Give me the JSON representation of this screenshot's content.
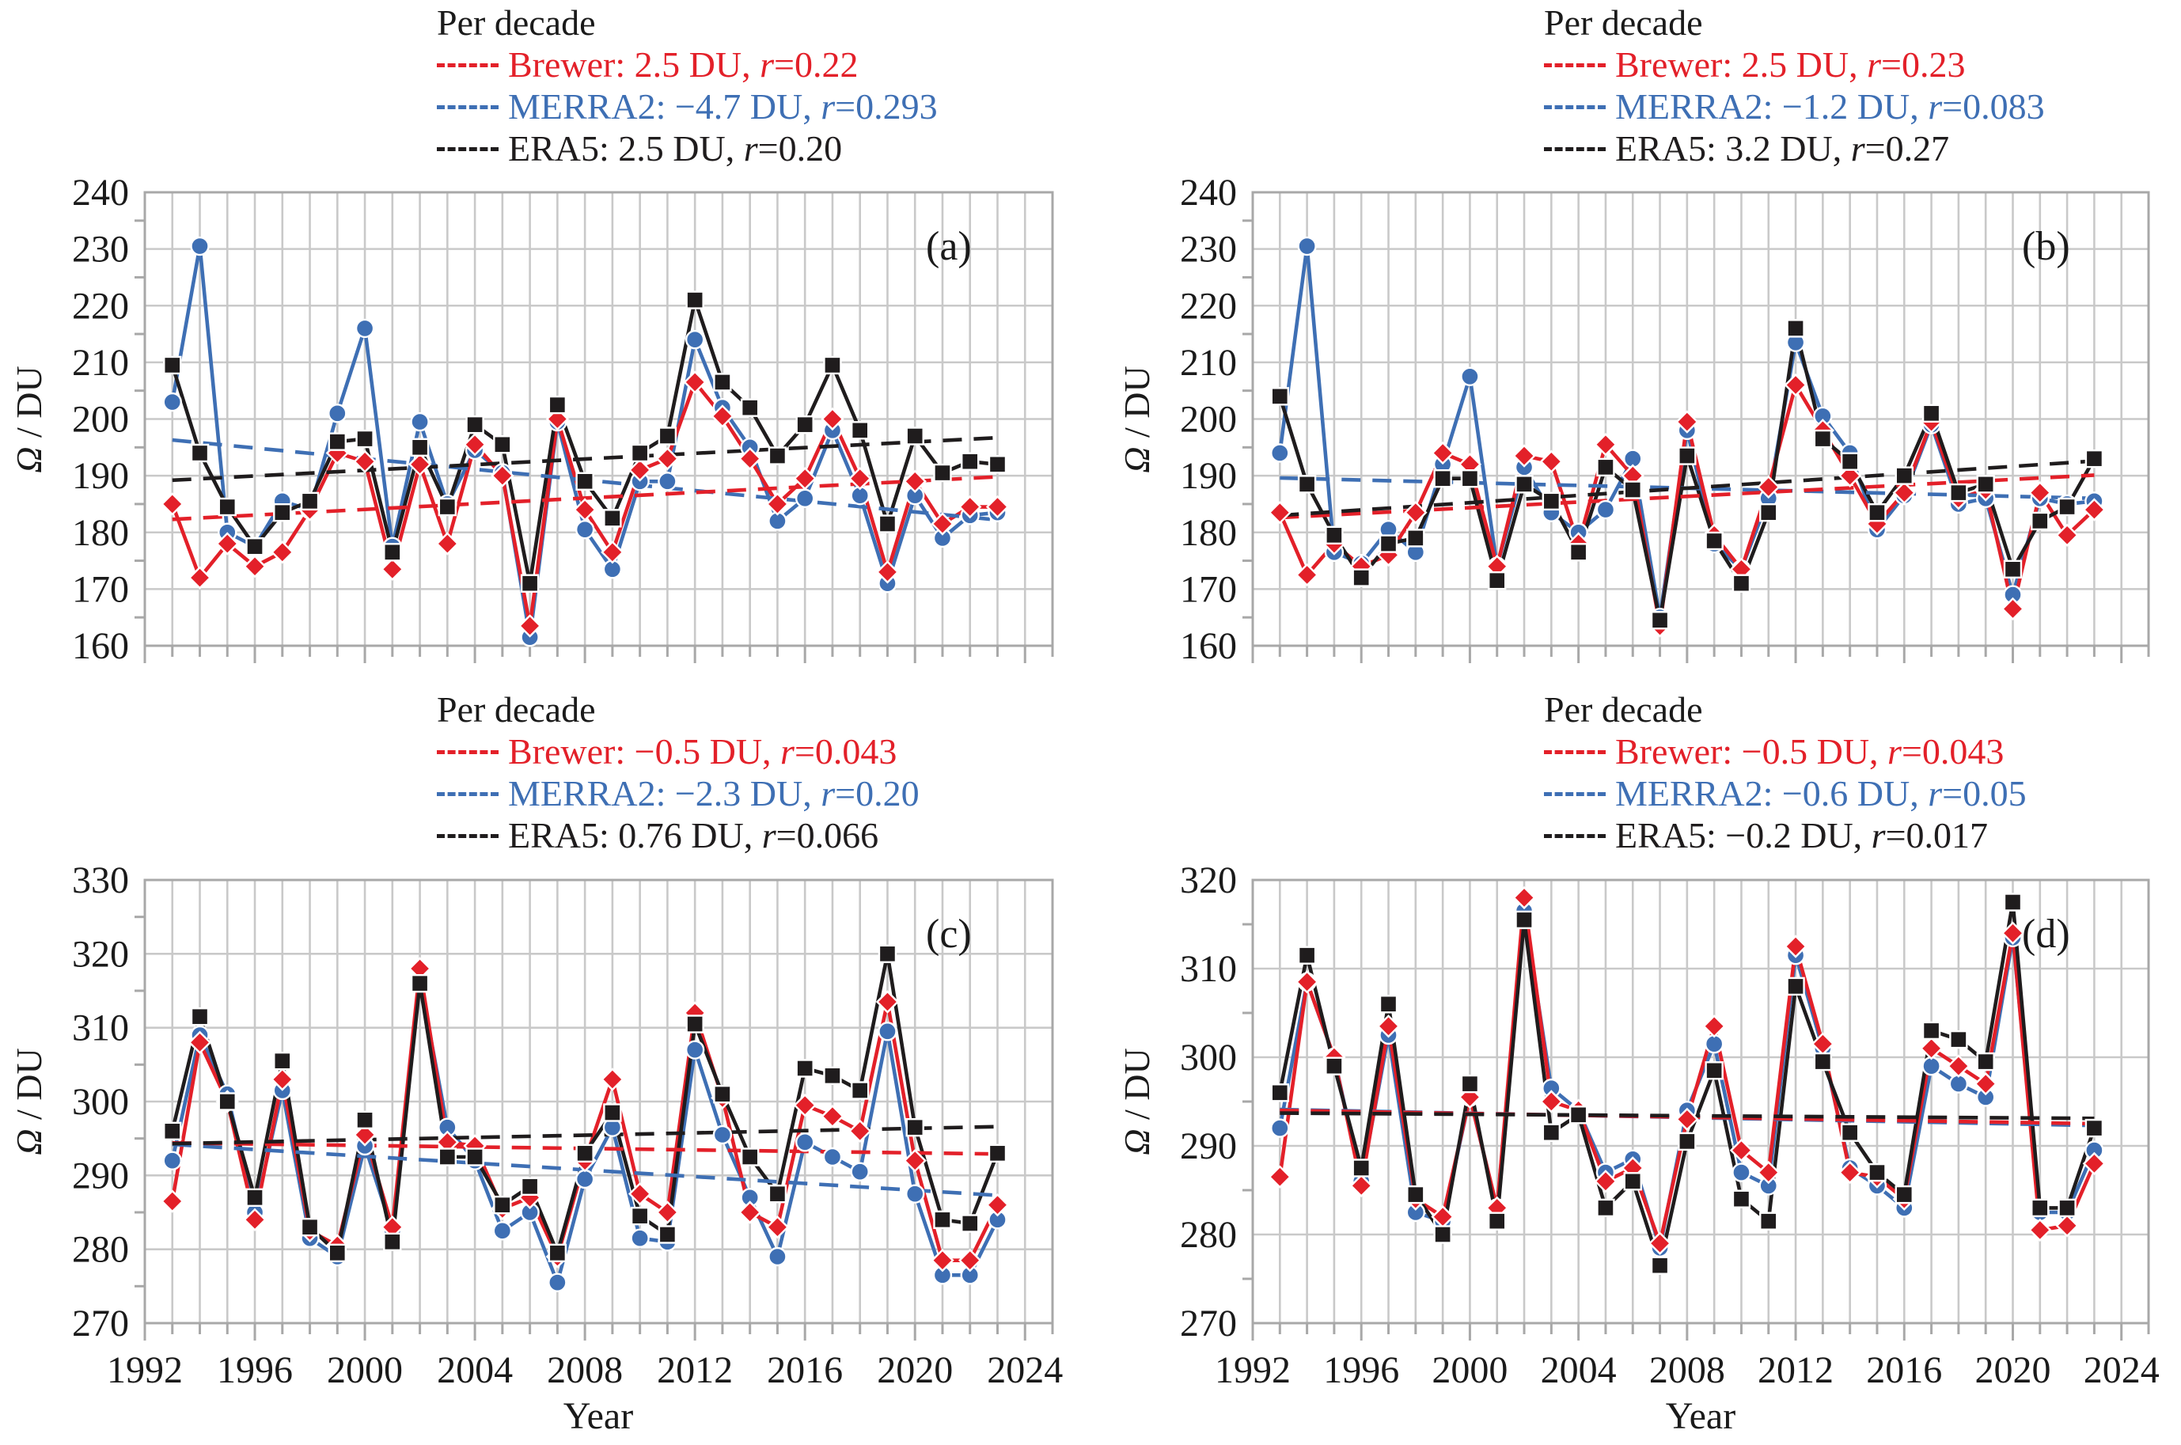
{
  "colors": {
    "brewer": "#e32029",
    "merra2": "#3e6fb4",
    "era5": "#1f1c1d",
    "grid": "#c9c9c9",
    "frame": "#a8a8a8",
    "text": "#1a1a1a",
    "marker_outline": "#ffffff"
  },
  "axis_titles": {
    "y_symbol": "Ω",
    "y_unit": " / DU",
    "x": "Year"
  },
  "x_axis": {
    "start": 1992,
    "end": 2025,
    "tick_labels": [
      "1992",
      "1996",
      "2000",
      "2004",
      "2008",
      "2012",
      "2016",
      "2020",
      "2024"
    ]
  },
  "chart_data": [
    {
      "id": "a",
      "type": "line",
      "panel_label": "(a)",
      "legend": {
        "title": "Per decade",
        "entries": [
          {
            "name": "Brewer",
            "rate": "2.5 DU",
            "r": "0.22",
            "color_key": "brewer"
          },
          {
            "name": "MERRA2",
            "rate": "−4.7 DU",
            "r": "0.293",
            "color_key": "merra2"
          },
          {
            "name": "ERA5",
            "rate": "2.5 DU",
            "r": "0.20",
            "color_key": "era5"
          }
        ]
      },
      "ylim": [
        160,
        240
      ],
      "ytick_step": 10,
      "years": [
        1993,
        1994,
        1995,
        1996,
        1997,
        1998,
        1999,
        2000,
        2001,
        2002,
        2003,
        2004,
        2005,
        2006,
        2007,
        2008,
        2009,
        2010,
        2011,
        2012,
        2013,
        2014,
        2015,
        2016,
        2017,
        2018,
        2019,
        2020,
        2021,
        2022,
        2023
      ],
      "series": [
        {
          "name": "MERRA2",
          "color_key": "merra2",
          "marker": "circle",
          "values": [
            203,
            230.5,
            180,
            177.5,
            185.5,
            184,
            201,
            216,
            177.5,
            199.5,
            185,
            194.5,
            190.5,
            161.5,
            199.5,
            180.5,
            173.5,
            189,
            189,
            214,
            202,
            195,
            182,
            186,
            198,
            186.5,
            171,
            186.5,
            179,
            183,
            183.5
          ]
        },
        {
          "name": "Brewer",
          "color_key": "brewer",
          "marker": "diamond",
          "values": [
            185,
            172,
            178,
            174,
            176.5,
            184,
            194,
            192.5,
            173.5,
            192,
            178,
            195.5,
            190,
            163.5,
            200,
            184,
            176.5,
            191,
            193,
            206.5,
            200.5,
            193,
            185,
            189.5,
            200,
            189.5,
            173,
            189,
            181.5,
            184.5,
            184.5
          ]
        },
        {
          "name": "ERA5",
          "color_key": "era5",
          "marker": "square",
          "values": [
            209.5,
            194,
            184.5,
            177.5,
            183.5,
            185.5,
            196,
            196.5,
            176.5,
            195,
            184.5,
            199,
            195.5,
            171,
            202.5,
            189,
            182.5,
            194,
            197,
            221,
            206.5,
            202,
            193.5,
            199,
            209.5,
            198,
            181.5,
            197,
            190.5,
            192.5,
            192
          ]
        }
      ],
      "trends": [
        {
          "color_key": "merra2",
          "start": 196.3,
          "end": 182.2
        },
        {
          "color_key": "brewer",
          "start": 182.3,
          "end": 189.8
        },
        {
          "color_key": "era5",
          "start": 189.2,
          "end": 196.7
        }
      ]
    },
    {
      "id": "b",
      "type": "line",
      "panel_label": "(b)",
      "legend": {
        "title": "Per decade",
        "entries": [
          {
            "name": "Brewer",
            "rate": "2.5 DU",
            "r": "0.23",
            "color_key": "brewer"
          },
          {
            "name": "MERRA2",
            "rate": "−1.2 DU",
            "r": "0.083",
            "color_key": "merra2"
          },
          {
            "name": "ERA5",
            "rate": "3.2 DU",
            "r": "0.27",
            "color_key": "era5"
          }
        ]
      },
      "ylim": [
        160,
        240
      ],
      "ytick_step": 10,
      "years": [
        1993,
        1994,
        1995,
        1996,
        1997,
        1998,
        1999,
        2000,
        2001,
        2002,
        2003,
        2004,
        2005,
        2006,
        2007,
        2008,
        2009,
        2010,
        2011,
        2012,
        2013,
        2014,
        2015,
        2016,
        2017,
        2018,
        2019,
        2020,
        2021,
        2022,
        2023
      ],
      "series": [
        {
          "name": "MERRA2",
          "color_key": "merra2",
          "marker": "circle",
          "values": [
            194,
            230.5,
            176.5,
            174.5,
            180.5,
            176.5,
            192,
            207.5,
            174,
            191.5,
            183.5,
            180,
            184,
            193,
            165,
            198,
            178,
            173.5,
            186,
            213.5,
            200.5,
            194,
            180.5,
            186.5,
            199,
            185,
            186,
            169,
            186,
            185,
            185.5
          ]
        },
        {
          "name": "Brewer",
          "color_key": "brewer",
          "marker": "diamond",
          "values": [
            183.5,
            172.5,
            178,
            174,
            176,
            183.5,
            194,
            192,
            174,
            193.5,
            192.5,
            178,
            195.5,
            190,
            163.5,
            199.5,
            179.5,
            173.5,
            188,
            206,
            198,
            190,
            181.5,
            187,
            199.5,
            186,
            187.5,
            166.5,
            187,
            179.5,
            184
          ]
        },
        {
          "name": "ERA5",
          "color_key": "era5",
          "marker": "square",
          "values": [
            204,
            188.5,
            179.5,
            172,
            178,
            179,
            189.5,
            189.5,
            171.5,
            188.5,
            185.5,
            176.5,
            191.5,
            187.5,
            164.5,
            193.5,
            178.5,
            171,
            183.5,
            216,
            196.5,
            192.5,
            183.5,
            190,
            201,
            187,
            188.5,
            173.5,
            182,
            184.5,
            193
          ]
        }
      ],
      "trends": [
        {
          "color_key": "merra2",
          "start": 189.6,
          "end": 186.0
        },
        {
          "color_key": "brewer",
          "start": 182.6,
          "end": 190.1
        },
        {
          "color_key": "era5",
          "start": 183.0,
          "end": 192.6
        }
      ]
    },
    {
      "id": "c",
      "type": "line",
      "panel_label": "(c)",
      "legend": {
        "title": "Per decade",
        "entries": [
          {
            "name": "Brewer",
            "rate": "−0.5 DU",
            "r": "0.043",
            "color_key": "brewer"
          },
          {
            "name": "MERRA2",
            "rate": "−2.3 DU",
            "r": "0.20",
            "color_key": "merra2"
          },
          {
            "name": "ERA5",
            "rate": "0.76 DU",
            "r": "0.066",
            "color_key": "era5"
          }
        ]
      },
      "ylim": [
        270,
        330
      ],
      "ytick_step": 10,
      "years": [
        1993,
        1994,
        1995,
        1996,
        1997,
        1998,
        1999,
        2000,
        2001,
        2002,
        2003,
        2004,
        2005,
        2006,
        2007,
        2008,
        2009,
        2010,
        2011,
        2012,
        2013,
        2014,
        2015,
        2016,
        2017,
        2018,
        2019,
        2020,
        2021,
        2022,
        2023
      ],
      "series": [
        {
          "name": "MERRA2",
          "color_key": "merra2",
          "marker": "circle",
          "values": [
            292,
            309,
            301,
            285,
            301.5,
            281.5,
            279,
            294,
            282.5,
            316.5,
            296.5,
            292,
            282.5,
            285,
            275.5,
            289.5,
            296.5,
            281.5,
            281,
            307,
            295.5,
            287,
            279,
            294.5,
            292.5,
            290.5,
            309.5,
            287.5,
            276.5,
            276.5,
            284
          ]
        },
        {
          "name": "Brewer",
          "color_key": "brewer",
          "marker": "diamond",
          "values": [
            286.5,
            308,
            300,
            284,
            303,
            282.5,
            280.5,
            295.5,
            283,
            318,
            294.5,
            294,
            285.5,
            287,
            279,
            292,
            303,
            287.5,
            285,
            312,
            300.5,
            285,
            283,
            299.5,
            298,
            296,
            313.5,
            292,
            278.5,
            278.5,
            286
          ]
        },
        {
          "name": "ERA5",
          "color_key": "era5",
          "marker": "square",
          "values": [
            296,
            311.5,
            300,
            287,
            305.5,
            283,
            279.5,
            297.5,
            281,
            316,
            292.5,
            292.5,
            286,
            288.5,
            279.5,
            293,
            298.5,
            284.5,
            282,
            310.5,
            301,
            292.5,
            287.5,
            304.5,
            303.5,
            301.5,
            320,
            296.5,
            284,
            283.5,
            293
          ]
        }
      ],
      "trends": [
        {
          "color_key": "merra2",
          "start": 294.2,
          "end": 287.3
        },
        {
          "color_key": "brewer",
          "start": 294.4,
          "end": 292.9
        },
        {
          "color_key": "era5",
          "start": 294.3,
          "end": 296.6
        }
      ]
    },
    {
      "id": "d",
      "type": "line",
      "panel_label": "(d)",
      "legend": {
        "title": "Per decade",
        "entries": [
          {
            "name": "Brewer",
            "rate": "−0.5 DU",
            "r": "0.043",
            "color_key": "brewer"
          },
          {
            "name": "MERRA2",
            "rate": "−0.6 DU",
            "r": "0.05",
            "color_key": "merra2"
          },
          {
            "name": "ERA5",
            "rate": "−0.2 DU",
            "r": "0.017",
            "color_key": "era5"
          }
        ]
      },
      "ylim": [
        270,
        320
      ],
      "ytick_step": 10,
      "years": [
        1993,
        1994,
        1995,
        1996,
        1997,
        1998,
        1999,
        2000,
        2001,
        2002,
        2003,
        2004,
        2005,
        2006,
        2007,
        2008,
        2009,
        2010,
        2011,
        2012,
        2013,
        2014,
        2015,
        2016,
        2017,
        2018,
        2019,
        2020,
        2021,
        2022,
        2023
      ],
      "series": [
        {
          "name": "MERRA2",
          "color_key": "merra2",
          "marker": "circle",
          "values": [
            292,
            308.5,
            300,
            286,
            302.5,
            282.5,
            281.5,
            295.5,
            283,
            316.5,
            296.5,
            294,
            287,
            288.5,
            278.5,
            294,
            301.5,
            287,
            285.5,
            311.5,
            301,
            287.5,
            285.5,
            283,
            299,
            297,
            295.5,
            313.5,
            282.5,
            282.5,
            289.5
          ]
        },
        {
          "name": "Brewer",
          "color_key": "brewer",
          "marker": "diamond",
          "values": [
            286.5,
            308.5,
            300,
            285.5,
            303.5,
            284,
            282,
            295.5,
            283,
            318,
            295,
            294,
            286,
            287.5,
            279,
            293,
            303.5,
            289.5,
            287,
            312.5,
            301.5,
            287,
            286.5,
            284,
            301,
            299,
            297,
            314,
            280.5,
            281,
            288
          ]
        },
        {
          "name": "ERA5",
          "color_key": "era5",
          "marker": "square",
          "values": [
            296,
            311.5,
            299,
            287.5,
            306,
            284.5,
            280,
            297,
            281.5,
            315.5,
            291.5,
            293.5,
            283,
            286,
            276.5,
            290.5,
            298.5,
            284,
            281.5,
            308,
            299.5,
            291.5,
            287,
            284.5,
            303,
            302,
            299.5,
            317.5,
            283,
            283,
            292
          ]
        }
      ],
      "trends": [
        {
          "color_key": "merra2",
          "start": 294.1,
          "end": 292.3
        },
        {
          "color_key": "brewer",
          "start": 294.0,
          "end": 292.5
        },
        {
          "color_key": "era5",
          "start": 293.7,
          "end": 293.1
        }
      ]
    }
  ]
}
